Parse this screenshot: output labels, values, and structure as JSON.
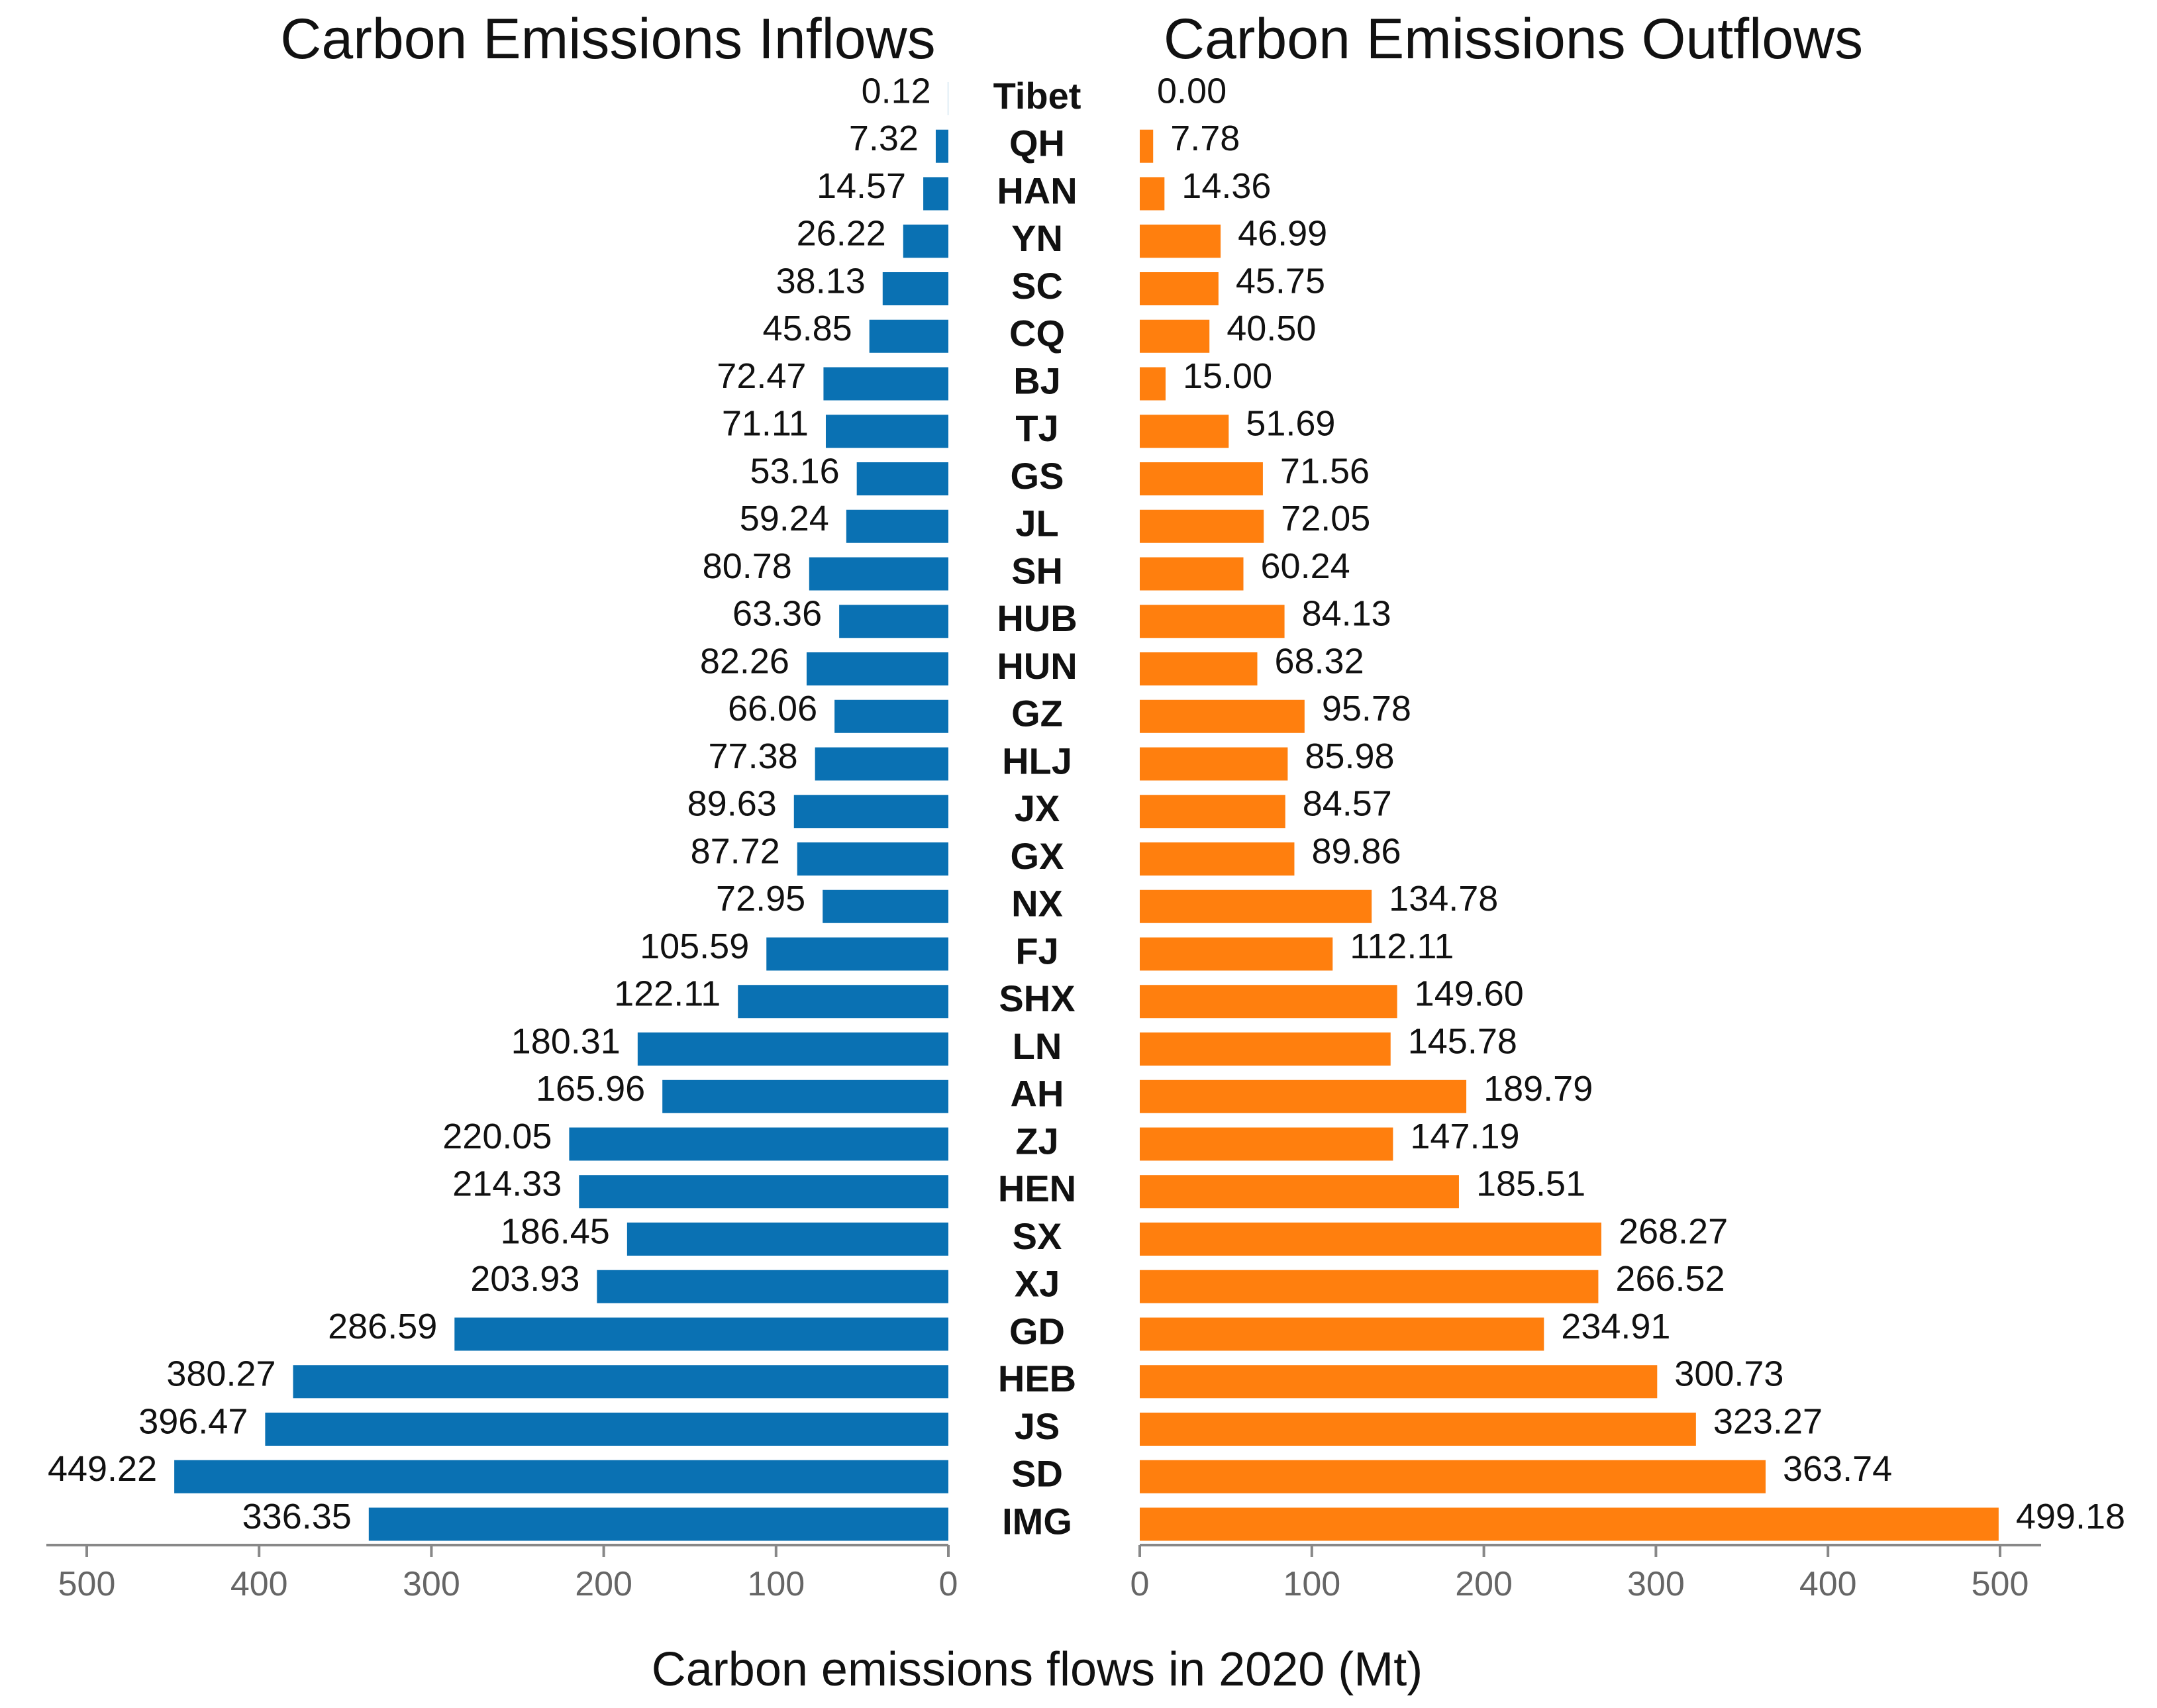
{
  "chart_data": [
    {
      "type": "bar",
      "orientation": "horizontal",
      "direction": "leftward",
      "title": "Carbon Emissions Inflows",
      "xlabel": "Carbon emissions flows in 2020 (Mt)",
      "xlim": [
        0,
        500
      ],
      "ticks": [
        500,
        400,
        300,
        200,
        100,
        0
      ],
      "color": "#0a71b3",
      "categories": [
        "Tibet",
        "QH",
        "HAN",
        "YN",
        "SC",
        "CQ",
        "BJ",
        "TJ",
        "GS",
        "JL",
        "SH",
        "HUB",
        "HUN",
        "GZ",
        "HLJ",
        "JX",
        "GX",
        "NX",
        "FJ",
        "SHX",
        "LN",
        "AH",
        "ZJ",
        "HEN",
        "SX",
        "XJ",
        "GD",
        "HEB",
        "JS",
        "SD",
        "IMG"
      ],
      "values": [
        0.12,
        7.32,
        14.57,
        26.22,
        38.13,
        45.85,
        72.47,
        71.11,
        53.16,
        59.24,
        80.78,
        63.36,
        82.26,
        66.06,
        77.38,
        89.63,
        87.72,
        72.95,
        105.59,
        122.11,
        180.31,
        165.96,
        220.05,
        214.33,
        186.45,
        203.93,
        286.59,
        380.27,
        396.47,
        449.22,
        336.35
      ],
      "labels": [
        "0.12",
        "7.32",
        "14.57",
        "26.22",
        "38.13",
        "45.85",
        "72.47",
        "71.11",
        "53.16",
        "59.24",
        "80.78",
        "63.36",
        "82.26",
        "66.06",
        "77.38",
        "89.63",
        "87.72",
        "72.95",
        "105.59",
        "122.11",
        "180.31",
        "165.96",
        "220.05",
        "214.33",
        "186.45",
        "203.93",
        "286.59",
        "380.27",
        "396.47",
        "449.22",
        "336.35"
      ]
    },
    {
      "type": "bar",
      "orientation": "horizontal",
      "direction": "rightward",
      "title": "Carbon Emissions Outflows",
      "xlabel": "Carbon emissions flows in 2020 (Mt)",
      "xlim": [
        0,
        500
      ],
      "ticks": [
        0,
        100,
        200,
        300,
        400,
        500
      ],
      "color": "#ff7f0e",
      "categories": [
        "Tibet",
        "QH",
        "HAN",
        "YN",
        "SC",
        "CQ",
        "BJ",
        "TJ",
        "GS",
        "JL",
        "SH",
        "HUB",
        "HUN",
        "GZ",
        "HLJ",
        "JX",
        "GX",
        "NX",
        "FJ",
        "SHX",
        "LN",
        "AH",
        "ZJ",
        "HEN",
        "SX",
        "XJ",
        "GD",
        "HEB",
        "JS",
        "SD",
        "IMG"
      ],
      "values": [
        0.0,
        7.78,
        14.36,
        46.99,
        45.75,
        40.5,
        15.0,
        51.69,
        71.56,
        72.05,
        60.24,
        84.13,
        68.32,
        95.78,
        85.98,
        84.57,
        89.86,
        134.78,
        112.11,
        149.6,
        145.78,
        189.79,
        147.19,
        185.51,
        268.27,
        266.52,
        234.91,
        300.73,
        323.27,
        363.74,
        499.18
      ],
      "labels": [
        "0.00",
        "7.78",
        "14.36",
        "46.99",
        "45.75",
        "40.50",
        "15.00",
        "51.69",
        "71.56",
        "72.05",
        "60.24",
        "84.13",
        "68.32",
        "95.78",
        "85.98",
        "84.57",
        "89.86",
        "134.78",
        "112.11",
        "149.60",
        "145.78",
        "189.79",
        "147.19",
        "185.51",
        "268.27",
        "266.52",
        "234.91",
        "300.73",
        "323.27",
        "363.74",
        "499.18"
      ]
    }
  ]
}
